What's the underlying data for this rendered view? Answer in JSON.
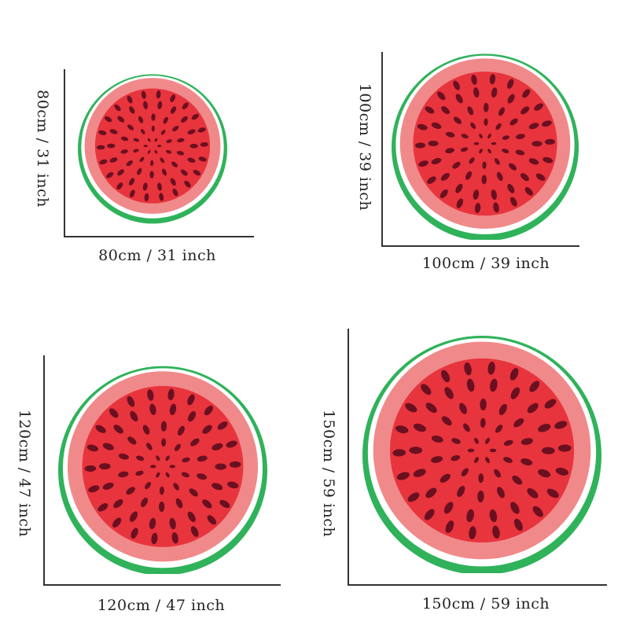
{
  "colors": {
    "rind": "#2fb25a",
    "gap": "#ffffff",
    "pale_flesh": "#f08a8a",
    "flesh": "#e8343d",
    "seed": "#6a1020"
  },
  "sizes": [
    {
      "id": "80",
      "width_label": "80cm / 31 inch",
      "height_label": "80cm / 31 inch",
      "diameter_cm": 80,
      "diameter_inch": 31
    },
    {
      "id": "100",
      "width_label": "100cm / 39 inch",
      "height_label": "100cm / 39 inch",
      "diameter_cm": 100,
      "diameter_inch": 39
    },
    {
      "id": "120",
      "width_label": "120cm / 47 inch",
      "height_label": "120cm / 47 inch",
      "diameter_cm": 120,
      "diameter_inch": 47
    },
    {
      "id": "150",
      "width_label": "150cm / 59 inch",
      "height_label": "150cm / 59 inch",
      "diameter_cm": 150,
      "diameter_inch": 59
    }
  ]
}
